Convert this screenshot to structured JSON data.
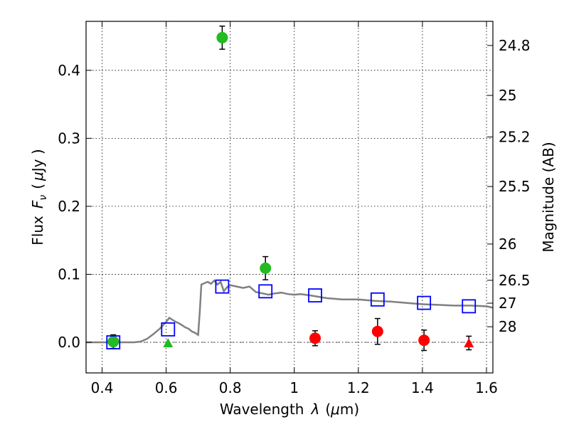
{
  "chart_data": {
    "type": "scatter",
    "xlabel_prefix": "Wavelength",
    "xlabel_symbol": "λ",
    "xlabel_unit_open": "(",
    "xlabel_unit_mu": "μ",
    "xlabel_unit_rest": "m)",
    "ylabel_prefix": "Flux",
    "ylabel_symbol": "F",
    "ylabel_subscript": "ν",
    "ylabel_unit_open": "(",
    "ylabel_unit_mu": "μ",
    "ylabel_unit_rest": "Jy )",
    "y2label": "Magnitude (AB)",
    "xlim": [
      0.35,
      1.62
    ],
    "ylim": [
      -0.045,
      0.472
    ],
    "xticks": [
      0.4,
      0.6,
      0.8,
      1.0,
      1.2,
      1.4,
      1.6
    ],
    "xtick_labels": [
      "0.4",
      "0.6",
      "0.8",
      "1",
      "1.2",
      "1.4",
      "1.6"
    ],
    "yticks": [
      0.0,
      0.1,
      0.2,
      0.3,
      0.4
    ],
    "ytick_labels": [
      "0.0",
      "0.1",
      "0.2",
      "0.3",
      "0.4"
    ],
    "mag_ticks": [
      24.8,
      25,
      25.2,
      25.5,
      26,
      26.5,
      27,
      28
    ],
    "mag_tick_labels": [
      "24.8",
      "25",
      "25.2",
      "25.5",
      "26",
      "26.5",
      "27",
      "28"
    ],
    "grid": true,
    "colors": {
      "detected": "#22bb22",
      "undetected": "#ff0000",
      "model_marker": "#0000ff",
      "model_line": "#808080"
    },
    "series": [
      {
        "marker": "circle",
        "color": "#22bb22",
        "x": [
          0.435,
          0.775,
          0.91
        ],
        "y": [
          0.001,
          0.448,
          0.109
        ],
        "yerr": [
          0.01,
          0.017,
          0.017
        ]
      },
      {
        "marker": "triangle",
        "color": "#22bb22",
        "x": [
          0.606
        ],
        "y": [
          -0.001
        ],
        "yerr": [
          null
        ]
      },
      {
        "marker": "circle",
        "color": "#ff0000",
        "x": [
          1.065,
          1.26,
          1.405
        ],
        "y": [
          0.006,
          0.016,
          0.003
        ],
        "yerr": [
          0.011,
          0.019,
          0.015
        ]
      },
      {
        "marker": "triangle",
        "color": "#ff0000",
        "x": [
          1.545
        ],
        "y": [
          -0.001
        ],
        "yerr": [
          0.01
        ]
      },
      {
        "marker": "square",
        "color": "#0000ff",
        "x": [
          0.435,
          0.606,
          0.775,
          0.91,
          1.065,
          1.26,
          1.405,
          1.545
        ],
        "y": [
          0.0,
          0.019,
          0.082,
          0.075,
          0.069,
          0.063,
          0.058,
          0.053
        ]
      },
      {
        "marker": "line",
        "color": "#808080",
        "x": [
          0.35,
          0.4,
          0.45,
          0.5,
          0.52,
          0.54,
          0.56,
          0.58,
          0.59,
          0.6,
          0.61,
          0.62,
          0.63,
          0.64,
          0.65,
          0.66,
          0.67,
          0.68,
          0.69,
          0.7,
          0.705,
          0.71,
          0.72,
          0.73,
          0.74,
          0.75,
          0.76,
          0.77,
          0.78,
          0.79,
          0.8,
          0.82,
          0.84,
          0.86,
          0.88,
          0.9,
          0.92,
          0.94,
          0.96,
          0.98,
          1.0,
          1.02,
          1.05,
          1.1,
          1.15,
          1.2,
          1.25,
          1.3,
          1.35,
          1.4,
          1.45,
          1.5,
          1.55,
          1.6,
          1.62
        ],
        "y": [
          0.0,
          0.0,
          0.0,
          0.0,
          0.001,
          0.005,
          0.012,
          0.02,
          0.025,
          0.03,
          0.036,
          0.033,
          0.03,
          0.028,
          0.025,
          0.022,
          0.02,
          0.016,
          0.014,
          0.011,
          0.045,
          0.085,
          0.087,
          0.089,
          0.086,
          0.091,
          0.085,
          0.089,
          0.075,
          0.081,
          0.084,
          0.082,
          0.08,
          0.082,
          0.074,
          0.072,
          0.07,
          0.072,
          0.073,
          0.071,
          0.07,
          0.071,
          0.069,
          0.065,
          0.063,
          0.063,
          0.061,
          0.06,
          0.058,
          0.056,
          0.055,
          0.054,
          0.054,
          0.053,
          0.051
        ]
      }
    ]
  }
}
